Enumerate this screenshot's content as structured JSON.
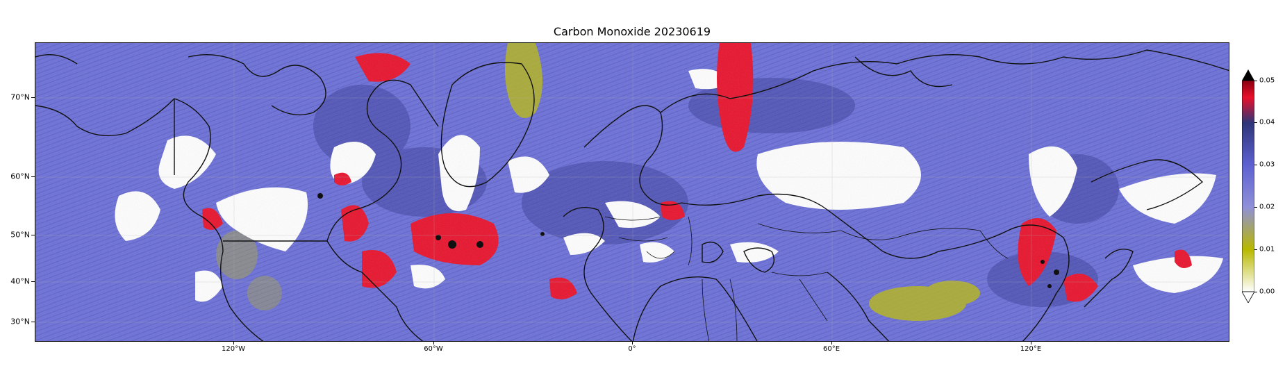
{
  "title": "Carbon Monoxide 20230619",
  "map": {
    "projection": "Plate Carree, Northern Hemisphere band",
    "lat_labels": [
      "70°N",
      "60°N",
      "50°N",
      "40°N",
      "30°N"
    ],
    "lon_labels": [
      "120°W",
      "60°W",
      "0°",
      "60°E",
      "120°E"
    ]
  },
  "colorbar": {
    "ticks": [
      "0.00",
      "0.01",
      "0.02",
      "0.03",
      "0.04",
      "0.05"
    ],
    "extend": "both",
    "colors": [
      "#ffffff",
      "#b8b800",
      "#7b7fe6",
      "#3a3f9a",
      "#e8102a",
      "#000000"
    ]
  }
}
